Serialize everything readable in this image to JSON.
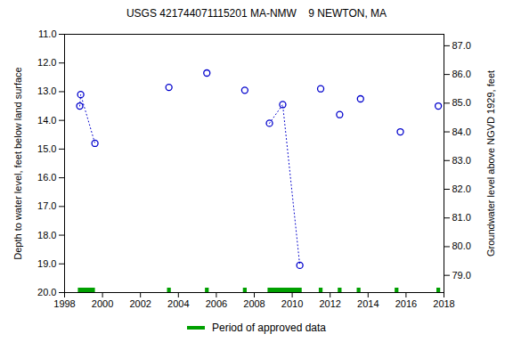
{
  "chart_data": {
    "type": "scatter",
    "title": "USGS 421744071115201 MA-NMW    9 NEWTON, MA",
    "y_label": "Depth to water level, feet below land surface",
    "y2_label": "Groundwater level above NGVD 1929, feet",
    "xlim": [
      1998,
      2018
    ],
    "xticks": [
      1998,
      2000,
      2002,
      2004,
      2006,
      2008,
      2010,
      2012,
      2014,
      2016,
      2018
    ],
    "ylim": [
      20,
      11
    ],
    "yticks": [
      {
        "value": 11,
        "label": "11.0"
      },
      {
        "value": 12,
        "label": "12.0"
      },
      {
        "value": 13,
        "label": "13.0"
      },
      {
        "value": 14,
        "label": "14.0"
      },
      {
        "value": 15,
        "label": "15.0"
      },
      {
        "value": 16,
        "label": "16.0"
      },
      {
        "value": 17,
        "label": "17.0"
      },
      {
        "value": 18,
        "label": "18.0"
      },
      {
        "value": 19,
        "label": "19.0"
      },
      {
        "value": 20,
        "label": "20.0"
      }
    ],
    "y2lim": [
      78.4,
      87.4
    ],
    "y2ticks": [
      {
        "value": 79,
        "label": "79.0"
      },
      {
        "value": 80,
        "label": "80.0"
      },
      {
        "value": 81,
        "label": "81.0"
      },
      {
        "value": 82,
        "label": "82.0"
      },
      {
        "value": 83,
        "label": "83.0"
      },
      {
        "value": 84,
        "label": "84.0"
      },
      {
        "value": 85,
        "label": "85.0"
      },
      {
        "value": 86,
        "label": "86.0"
      },
      {
        "value": 87,
        "label": "87.0"
      }
    ],
    "series": [
      {
        "type": "scatter",
        "marker": "circle",
        "color": "#0000cc",
        "x": [
          1998.8,
          1998.85,
          1999.6,
          2003.5,
          2005.5,
          2007.5,
          2008.8,
          2009.5,
          2010.4,
          2011.5,
          2012.5,
          2013.6,
          2015.7,
          2017.7
        ],
        "values": [
          13.5,
          13.1,
          14.8,
          12.85,
          12.35,
          12.95,
          14.1,
          13.45,
          19.05,
          12.9,
          13.8,
          13.25,
          14.4,
          13.5
        ]
      },
      {
        "type": "line",
        "line_style": "dotted",
        "color": "#0000cc",
        "x": [
          1998.8,
          1998.85,
          1999.6,
          null,
          2008.8,
          2009.5,
          2010.4
        ],
        "values": [
          13.5,
          13.1,
          14.8,
          null,
          14.1,
          13.45,
          19.05
        ]
      }
    ],
    "approved_data": {
      "name": "Period of approved data",
      "color": "#00a000",
      "ranges": [
        [
          1998.7,
          1999.6
        ],
        [
          2003.4,
          2003.6
        ],
        [
          2005.4,
          2005.6
        ],
        [
          2007.4,
          2007.6
        ],
        [
          2008.7,
          2010.5
        ],
        [
          2011.4,
          2011.6
        ],
        [
          2012.4,
          2012.6
        ],
        [
          2013.4,
          2013.6
        ],
        [
          2015.4,
          2015.6
        ],
        [
          2017.6,
          2017.8
        ]
      ]
    }
  }
}
